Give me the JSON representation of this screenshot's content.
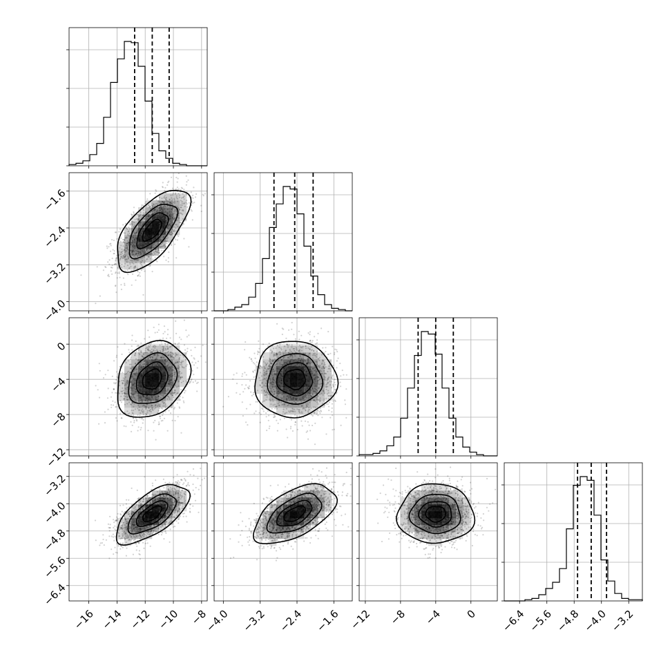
{
  "chart_data": {
    "type": "corner",
    "grid": true,
    "colors": {
      "line": "#000000",
      "grid": "#b0b0b0",
      "fill_dark": "#000000",
      "fill_light": "#ffffff"
    },
    "parameters": [
      {
        "range": [
          -17.4,
          -7.6
        ],
        "ticks": [
          -16,
          -14,
          -12,
          -10,
          -8
        ],
        "tick_labels": [
          "−16",
          "−14",
          "−12",
          "−10",
          "−8"
        ],
        "mean": -11.5,
        "sd": 1.25,
        "quantiles": [
          -12.75,
          -11.5,
          -10.3
        ],
        "hist_counts": [
          1,
          2,
          4,
          9,
          18,
          39,
          67,
          86,
          100,
          99,
          80,
          52,
          26,
          12,
          6,
          2,
          1,
          0,
          0,
          0
        ]
      },
      {
        "range": [
          -4.2,
          -1.2
        ],
        "ticks": [
          -4.0,
          -3.2,
          -2.4,
          -1.6
        ],
        "tick_labels": [
          "−4.0",
          "−3.2",
          "−2.4",
          "−1.6"
        ],
        "mean": -2.45,
        "sd": 0.43,
        "quantiles": [
          -2.9,
          -2.45,
          -2.05
        ],
        "hist_counts": [
          0,
          0,
          1,
          3,
          5,
          11,
          22,
          42,
          67,
          86,
          100,
          98,
          78,
          52,
          28,
          13,
          5,
          2,
          1,
          0
        ]
      },
      {
        "range": [
          -12.7,
          3.0
        ],
        "ticks": [
          -12,
          -8,
          -4,
          0
        ],
        "tick_labels": [
          "−12",
          "−8",
          "−4",
          "0"
        ],
        "mean": -4.0,
        "sd": 2.1,
        "quantiles": [
          -6.0,
          -4.0,
          -2.0
        ],
        "hist_counts": [
          1,
          1,
          2,
          4,
          8,
          15,
          30,
          54,
          80,
          99,
          97,
          81,
          54,
          30,
          15,
          7,
          3,
          1,
          0,
          0
        ]
      },
      {
        "range": [
          -6.85,
          -2.8
        ],
        "ticks": [
          -6.4,
          -5.6,
          -4.8,
          -4.0,
          -3.2
        ],
        "tick_labels": [
          "−6.4",
          "−5.6",
          "−4.8",
          "−4.0",
          "−3.2"
        ],
        "mean": -4.3,
        "sd": 0.42,
        "quantiles": [
          -4.7,
          -4.3,
          -3.85
        ],
        "hist_counts": [
          0,
          0,
          0,
          1,
          2,
          5,
          10,
          15,
          26,
          58,
          93,
          100,
          97,
          69,
          33,
          16,
          6,
          2,
          1,
          1
        ]
      }
    ],
    "correlations": [
      [
        1.0,
        0.65,
        0.25,
        0.65
      ],
      [
        0.65,
        1.0,
        0.0,
        0.55
      ],
      [
        0.25,
        0.0,
        1.0,
        0.0
      ],
      [
        0.65,
        0.55,
        0.0,
        1.0
      ]
    ],
    "contour_levels_sigma": [
      0.5,
      1.0,
      1.5,
      2.0
    ]
  }
}
